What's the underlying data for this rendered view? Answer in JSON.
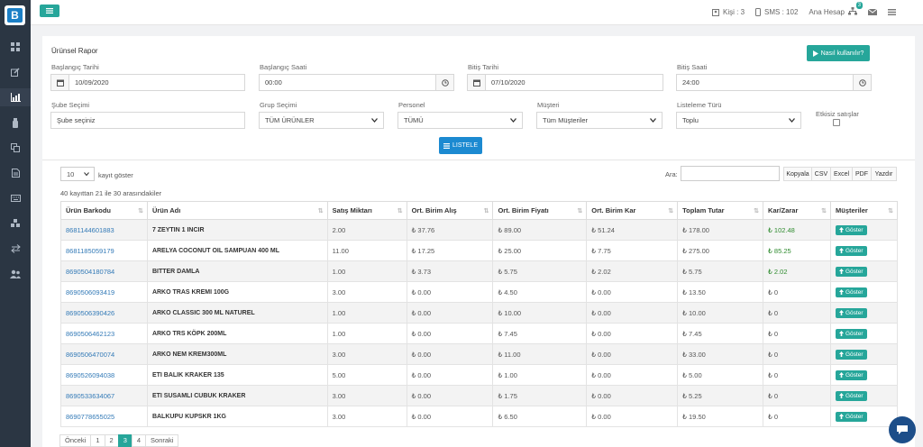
{
  "app": {
    "logo_letter": "B"
  },
  "topbar": {
    "kisi": "Kişi : 3",
    "sms": "SMS : 102",
    "account": "Ana Hesap",
    "notif_count": "3"
  },
  "panel": {
    "title": "Ürünsel Rapor",
    "help_button": "Nasıl kullanılır?"
  },
  "filters": {
    "start_date_label": "Başlangıç Tarihi",
    "start_date": "10/09/2020",
    "start_time_label": "Başlangıç Saati",
    "start_time": "00:00",
    "end_date_label": "Bitiş Tarihi",
    "end_date": "07/10/2020",
    "end_time_label": "Bitiş Saati",
    "end_time": "24:00",
    "branch_label": "Şube Seçimi",
    "branch_placeholder": "Şube seçiniz",
    "group_label": "Grup Seçimi",
    "group_value": "TÜM ÜRÜNLER",
    "staff_label": "Personel",
    "staff_value": "TÜMÜ",
    "customer_label": "Müşteri",
    "customer_value": "Tüm Müşteriler",
    "list_type_label": "Listeleme Türü",
    "list_type_value": "Toplu",
    "ineffective_label": "Etkisiz satışlar",
    "list_button": "LISTELE"
  },
  "table_controls": {
    "page_length": "10",
    "length_label": "kayıt göster",
    "info": "40 kayıttan 21 ile 30 arasındakiler",
    "search_label": "Ara:",
    "export_buttons": [
      "Kopyala",
      "CSV",
      "Excel",
      "PDF",
      "Yazdır"
    ]
  },
  "table": {
    "columns": [
      "Ürün Barkodu",
      "Ürün Adı",
      "Satış Miktarı",
      "Ort. Birim Alış",
      "Ort. Birim Fiyatı",
      "Ort. Birim Kar",
      "Toplam Tutar",
      "Kar/Zarar",
      "Müşteriler"
    ],
    "action_label": "Göster",
    "rows": [
      [
        "8681144601883",
        "7 ZEYTIN 1 INCIR",
        "2.00",
        "₺ 37.76",
        "₺ 89.00",
        "₺ 51.24",
        "₺ 178.00",
        "₺ 102.48"
      ],
      [
        "8681185059179",
        "ARELYA COCONUT OIL SAMPUAN 400 ML",
        "11.00",
        "₺ 17.25",
        "₺ 25.00",
        "₺ 7.75",
        "₺ 275.00",
        "₺ 85.25"
      ],
      [
        "8690504180784",
        "BITTER DAMLA",
        "1.00",
        "₺ 3.73",
        "₺ 5.75",
        "₺ 2.02",
        "₺ 5.75",
        "₺ 2.02"
      ],
      [
        "8690506093419",
        "ARKO TRAS KREMI 100G",
        "3.00",
        "₺ 0.00",
        "₺ 4.50",
        "₺ 0.00",
        "₺ 13.50",
        "₺ 0"
      ],
      [
        "8690506390426",
        "ARKO CLASSIC 300 ML NATUREL",
        "1.00",
        "₺ 0.00",
        "₺ 10.00",
        "₺ 0.00",
        "₺ 10.00",
        "₺ 0"
      ],
      [
        "8690506462123",
        "ARKO TRS KÖPK 200ML",
        "1.00",
        "₺ 0.00",
        "₺ 7.45",
        "₺ 0.00",
        "₺ 7.45",
        "₺ 0"
      ],
      [
        "8690506470074",
        "ARKO NEM KREM300ML",
        "3.00",
        "₺ 0.00",
        "₺ 11.00",
        "₺ 0.00",
        "₺ 33.00",
        "₺ 0"
      ],
      [
        "8690526094038",
        "ETI BALIK KRAKER 135",
        "5.00",
        "₺ 0.00",
        "₺ 1.00",
        "₺ 0.00",
        "₺ 5.00",
        "₺ 0"
      ],
      [
        "8690533634067",
        "ETI SUSAMLI CUBUK KRAKER",
        "3.00",
        "₺ 0.00",
        "₺ 1.75",
        "₺ 0.00",
        "₺ 5.25",
        "₺ 0"
      ],
      [
        "8690778655025",
        "BALKUPU KUPSKR 1KG",
        "3.00",
        "₺ 0.00",
        "₺ 6.50",
        "₺ 0.00",
        "₺ 19.50",
        "₺ 0"
      ]
    ]
  },
  "pagination": {
    "prev": "Önceki",
    "pages": [
      "1",
      "2",
      "3",
      "4"
    ],
    "current": "3",
    "next": "Sonraki"
  },
  "colors": {
    "sidebar": "#2b3643",
    "accent": "#26a69a",
    "primary": "#1c8ad1",
    "link": "#337ab7"
  }
}
